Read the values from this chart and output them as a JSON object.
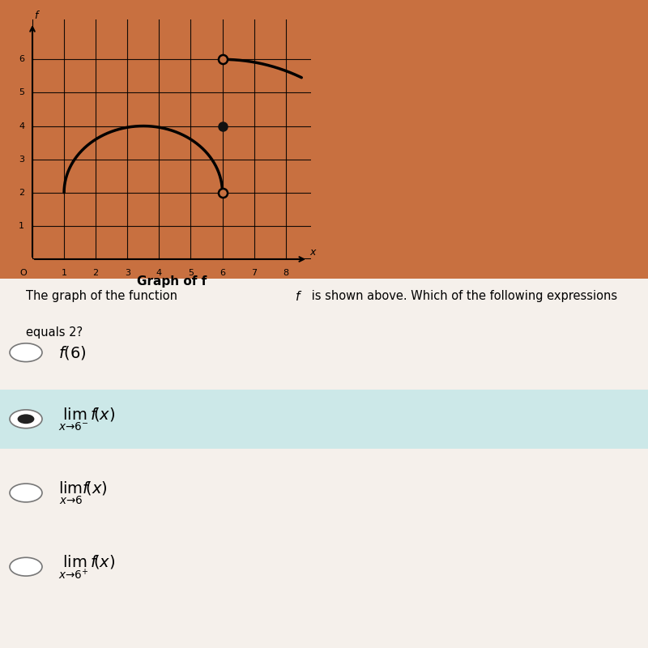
{
  "fig_bg_top": "#c87040",
  "fig_bg_bottom": "#f5f0eb",
  "graph_bg": "#c87040",
  "graph_xlim": [
    0,
    8.8
  ],
  "graph_ylim": [
    0,
    7.2
  ],
  "graph_xticks": [
    1,
    2,
    3,
    4,
    5,
    6,
    7,
    8
  ],
  "graph_yticks": [
    1,
    2,
    3,
    4,
    5,
    6
  ],
  "graph_title": "Graph of f",
  "open_circle_1": [
    6,
    2
  ],
  "filled_circle": [
    6,
    4
  ],
  "open_circle_2": [
    6,
    6
  ],
  "question_text_line1": "The graph of the function ",
  "question_text_line2": " is shown above. Which of the following expressions",
  "question_text_line3": "equals 2?",
  "options": [
    {
      "label_parts": [
        "f(6)"
      ],
      "math": true,
      "selected": false
    },
    {
      "label_parts": [
        "lim_{x \\to 6^-} f\\left(x\\right)"
      ],
      "math": true,
      "selected": true
    },
    {
      "label_parts": [
        "lim_{x \\to 6} f\\left(x\\right)"
      ],
      "math": true,
      "selected": false
    },
    {
      "label_parts": [
        "lim_{x \\to 6^+} f\\left(x\\right)"
      ],
      "math": true,
      "selected": false
    }
  ],
  "selected_bg": "#cce8e8",
  "radio_color": "#555555"
}
